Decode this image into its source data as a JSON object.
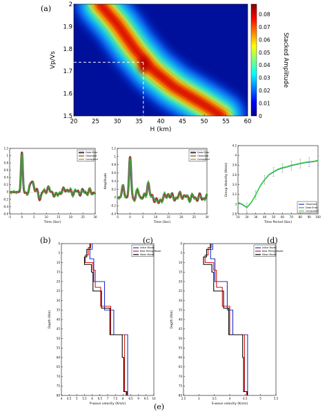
{
  "panel_letters": {
    "a": "(a)",
    "b": "(b)",
    "c": "(c)",
    "d": "(d)",
    "e": "(e)"
  },
  "chart_data": [
    {
      "id": "a",
      "type": "heatmap",
      "xlabel": "H (km)",
      "ylabel": "Vp/Vs",
      "xlim": [
        20,
        60
      ],
      "ylim": [
        1.5,
        2.0
      ],
      "x_ticks": [
        20,
        25,
        30,
        35,
        40,
        45,
        50,
        55,
        60
      ],
      "y_ticks": [
        1.5,
        1.6,
        1.7,
        1.8,
        1.9,
        2.0
      ],
      "colorbar": {
        "label": "Stacked Amplitude",
        "range": [
          0,
          0.088
        ],
        "ticks": [
          0,
          0.01,
          0.02,
          0.03,
          0.04,
          0.05,
          0.06,
          0.07,
          0.08
        ]
      },
      "peak": {
        "H": 36,
        "VpVs": 1.74
      },
      "ridge": [
        [
          26,
          2.0
        ],
        [
          30,
          1.91
        ],
        [
          34,
          1.8
        ],
        [
          38,
          1.71
        ],
        [
          43,
          1.63
        ],
        [
          50,
          1.55
        ],
        [
          54,
          1.5
        ]
      ]
    },
    {
      "id": "b",
      "type": "line",
      "xlabel": "Time (Sec)",
      "ylabel": "Amplitude",
      "xlim": [
        -5,
        30
      ],
      "ylim": [
        -0.6,
        1.2
      ],
      "x_ticks": [
        -5,
        0,
        5,
        10,
        15,
        20,
        25,
        30
      ],
      "y_ticks": [
        -0.6,
        -0.4,
        -0.2,
        0,
        0.2,
        0.4,
        0.6,
        0.8,
        1,
        1.2
      ],
      "legend": [
        "Data Error",
        "Observed",
        "Computed"
      ],
      "legend_position": "top-right",
      "pulses": [
        [
          0,
          1.1,
          0.35
        ],
        [
          4.2,
          0.35,
          0.6
        ],
        [
          7.5,
          -0.15,
          0.5
        ],
        [
          10.5,
          0.12,
          0.5
        ],
        [
          14,
          -0.12,
          0.6
        ],
        [
          18,
          0.1,
          0.6
        ]
      ]
    },
    {
      "id": "c",
      "type": "line",
      "xlabel": "Time (Sec)",
      "ylabel": "Amplitude",
      "xlim": [
        -5,
        30
      ],
      "ylim": [
        -0.4,
        1.2
      ],
      "x_ticks": [
        -5,
        0,
        5,
        10,
        15,
        20,
        25,
        30
      ],
      "y_ticks": [
        -0.4,
        -0.2,
        0,
        0.2,
        0.4,
        0.6,
        0.8,
        1,
        1.2
      ],
      "legend": [
        "Data Error",
        "Observed",
        "Computed"
      ],
      "legend_position": "top-right",
      "pulses": [
        [
          0,
          1.0,
          0.4
        ],
        [
          -2.8,
          0.3,
          0.4
        ],
        [
          3.2,
          0.15,
          0.5
        ],
        [
          7.0,
          0.38,
          0.45
        ],
        [
          11,
          -0.15,
          0.6
        ],
        [
          15,
          0.1,
          0.5
        ],
        [
          20,
          0.08,
          0.6
        ]
      ]
    },
    {
      "id": "d",
      "type": "line",
      "xlabel": "Time Period (Sec)",
      "ylabel": "Group Velocity (Km/s)",
      "xlim": [
        10,
        100
      ],
      "ylim": [
        2.8,
        4.2
      ],
      "x_ticks": [
        10,
        20,
        30,
        40,
        50,
        60,
        70,
        80,
        90,
        100
      ],
      "y_ticks": [
        2.8,
        3,
        3.2,
        3.4,
        3.6,
        3.8,
        4,
        4.2
      ],
      "legend": [
        "Observed",
        "Data Error",
        "Computed"
      ],
      "legend_position": "bottom-right",
      "x": [
        10,
        15,
        20,
        25,
        30,
        35,
        40,
        45,
        50,
        55,
        60,
        65,
        70,
        75,
        80,
        85,
        90,
        95,
        100
      ],
      "y": [
        3.03,
        2.99,
        2.93,
        3.03,
        3.19,
        3.37,
        3.5,
        3.6,
        3.66,
        3.71,
        3.74,
        3.76,
        3.79,
        3.81,
        3.83,
        3.85,
        3.86,
        3.87,
        3.89
      ],
      "yerr": 0.09
    },
    {
      "id": "e1",
      "type": "line",
      "xlabel": "P-wave velocity (Km/s)",
      "ylabel": "Depth (Km)",
      "xlim": [
        4,
        10
      ],
      "ylim": [
        0,
        80
      ],
      "x_ticks": [
        4,
        4.5,
        5,
        5.5,
        6,
        6.5,
        7,
        7.5,
        8,
        8.5,
        9,
        9.5,
        10
      ],
      "y_ticks": [
        0,
        5,
        10,
        15,
        20,
        25,
        30,
        35,
        40,
        45,
        50,
        55,
        60,
        65,
        70,
        75,
        80
      ],
      "legend": [
        "Initial Model",
        "Best Fitting Model",
        "Mean Model"
      ],
      "legend_position": "top-right",
      "series": [
        {
          "name": "Initial Model",
          "color": "#1f2fd0",
          "profile": [
            [
              0,
              6.0
            ],
            [
              3,
              5.85
            ],
            [
              8,
              6.1
            ],
            [
              15,
              6.1
            ],
            [
              20,
              6.8
            ],
            [
              30,
              6.8
            ],
            [
              35,
              7.4
            ],
            [
              48,
              7.4
            ],
            [
              48,
              8.3
            ],
            [
              80,
              8.3
            ]
          ]
        },
        {
          "name": "Best Fitting Model",
          "color": "#d01818",
          "profile": [
            [
              0,
              5.9
            ],
            [
              2,
              5.75
            ],
            [
              6,
              5.55
            ],
            [
              10,
              6.05
            ],
            [
              14,
              6.2
            ],
            [
              23,
              6.55
            ],
            [
              33,
              7.2
            ],
            [
              48,
              8.1
            ],
            [
              78,
              8.2
            ]
          ]
        },
        {
          "name": "Mean Model",
          "color": "#000000",
          "profile": [
            [
              0,
              5.85
            ],
            [
              3,
              5.65
            ],
            [
              7,
              5.5
            ],
            [
              11,
              5.95
            ],
            [
              15,
              6.05
            ],
            [
              25,
              6.6
            ],
            [
              34,
              7.15
            ],
            [
              48,
              7.95
            ],
            [
              60,
              8.05
            ],
            [
              78,
              8.25
            ]
          ]
        }
      ]
    },
    {
      "id": "e2",
      "type": "line",
      "xlabel": "S-wave velocity (Km/s)",
      "ylabel": "Depth (Km)",
      "xlim": [
        2.5,
        5.5
      ],
      "ylim": [
        0,
        80
      ],
      "x_ticks": [
        2.5,
        3,
        3.5,
        4,
        4.5,
        5,
        5.5
      ],
      "y_ticks": [
        0,
        5,
        10,
        15,
        20,
        25,
        30,
        35,
        40,
        45,
        50,
        55,
        60,
        65,
        70,
        75,
        80
      ],
      "legend": [
        "Initial Model",
        "Best Fitting Model",
        "Mean Model"
      ],
      "legend_position": "top-right",
      "series": [
        {
          "name": "Initial Model",
          "color": "#1f2fd0",
          "profile": [
            [
              0,
              3.45
            ],
            [
              3,
              3.38
            ],
            [
              8,
              3.52
            ],
            [
              15,
              3.52
            ],
            [
              20,
              3.92
            ],
            [
              30,
              3.92
            ],
            [
              35,
              4.1
            ],
            [
              48,
              4.1
            ],
            [
              48,
              4.58
            ],
            [
              80,
              4.58
            ]
          ]
        },
        {
          "name": "Best Fitting Model",
          "color": "#d01818",
          "profile": [
            [
              0,
              3.4
            ],
            [
              2,
              3.3
            ],
            [
              6,
              3.2
            ],
            [
              10,
              3.48
            ],
            [
              14,
              3.57
            ],
            [
              23,
              3.76
            ],
            [
              33,
              4.0
            ],
            [
              48,
              4.48
            ],
            [
              78,
              4.55
            ]
          ]
        },
        {
          "name": "Mean Model",
          "color": "#000000",
          "profile": [
            [
              0,
              3.37
            ],
            [
              3,
              3.25
            ],
            [
              7,
              3.15
            ],
            [
              11,
              3.42
            ],
            [
              15,
              3.48
            ],
            [
              25,
              3.8
            ],
            [
              34,
              3.97
            ],
            [
              48,
              4.42
            ],
            [
              60,
              4.45
            ],
            [
              78,
              4.57
            ]
          ]
        }
      ]
    }
  ]
}
